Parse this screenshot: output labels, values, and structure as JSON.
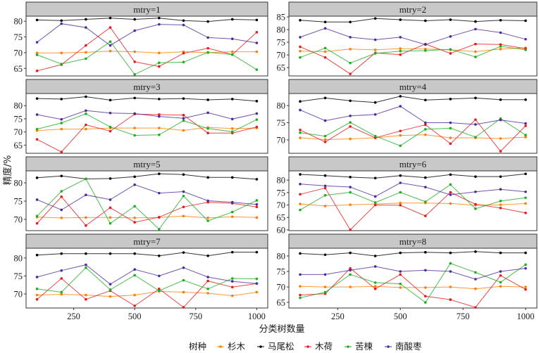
{
  "chart_data": {
    "type": "line",
    "title": "",
    "xlabel": "分类树数量",
    "ylabel": "精度/%",
    "x": [
      100,
      200,
      300,
      400,
      500,
      600,
      700,
      800,
      900,
      1000
    ],
    "x_ticks": [
      250,
      500,
      750,
      1000
    ],
    "xlim": [
      55,
      1045
    ],
    "legend": {
      "title": "树种",
      "placement": "bottom",
      "entries": [
        "杉木",
        "马尾松",
        "木荷",
        "苦楝",
        "南酸枣"
      ]
    },
    "series_colors": {
      "杉木": "#ff7f00",
      "马尾松": "#000000",
      "木荷": "#e41a1c",
      "苦楝": "#1fae1f",
      "南酸枣": "#4b2a9c"
    },
    "panels": [
      {
        "label": "mtry=1",
        "ylim": [
          62.6,
          81.6
        ],
        "y_ticks": [
          65,
          70,
          75,
          80
        ],
        "series": [
          {
            "name": "杉木",
            "values": [
              69.9,
              69.9,
              70.1,
              70.5,
              70.3,
              69.9,
              70.3,
              70.0,
              70.3,
              70.3
            ]
          },
          {
            "name": "马尾松",
            "values": [
              80.4,
              80.2,
              80.6,
              81.0,
              80.6,
              81.0,
              80.2,
              79.9,
              80.6,
              80.4
            ]
          },
          {
            "name": "木荷",
            "values": [
              64.2,
              66.2,
              72.3,
              78.0,
              67.1,
              65.6,
              69.8,
              71.4,
              69.4,
              76.5
            ]
          },
          {
            "name": "苦楝",
            "values": [
              69.3,
              66.4,
              68.1,
              73.5,
              63.1,
              66.8,
              67.0,
              70.1,
              69.4,
              64.6
            ]
          },
          {
            "name": "南酸枣",
            "values": [
              73.3,
              79.2,
              78.0,
              72.3,
              77.0,
              79.0,
              78.8,
              74.8,
              74.4,
              73.1
            ]
          }
        ]
      },
      {
        "label": "mtry=2",
        "ylim": [
          61.7,
          85.3
        ],
        "y_ticks": [
          65,
          70,
          75,
          80,
          85
        ],
        "series": [
          {
            "name": "杉木",
            "values": [
              71.5,
              71.3,
              72.3,
              72.0,
              72.5,
              72.3,
              72.0,
              71.3,
              72.3,
              72.8
            ]
          },
          {
            "name": "马尾松",
            "values": [
              83.7,
              83.0,
              83.0,
              84.4,
              83.9,
              83.5,
              83.9,
              83.2,
              83.7,
              83.5
            ]
          },
          {
            "name": "木荷",
            "values": [
              73.2,
              69.0,
              62.5,
              70.8,
              70.1,
              74.3,
              70.6,
              74.3,
              74.1,
              72.5
            ]
          },
          {
            "name": "苦楝",
            "values": [
              69.0,
              72.7,
              66.8,
              70.6,
              71.5,
              71.7,
              72.2,
              69.2,
              73.4,
              72.0
            ]
          },
          {
            "name": "南酸枣",
            "values": [
              77.0,
              80.5,
              77.0,
              76.0,
              77.0,
              74.1,
              77.3,
              80.2,
              78.8,
              76.2
            ]
          }
        ]
      },
      {
        "label": "mtry=3",
        "ylim": [
          61.9,
          84.6
        ],
        "y_ticks": [
          65,
          70,
          75,
          80
        ],
        "series": [
          {
            "name": "杉木",
            "values": [
              70.5,
              71.1,
              71.1,
              71.5,
              71.5,
              71.5,
              70.6,
              71.7,
              71.3,
              71.5
            ]
          },
          {
            "name": "马尾松",
            "values": [
              82.7,
              82.5,
              83.4,
              82.1,
              82.9,
              82.5,
              82.7,
              82.2,
              82.5,
              81.7
            ]
          },
          {
            "name": "木荷",
            "values": [
              67.2,
              62.4,
              72.7,
              70.3,
              76.8,
              76.6,
              76.4,
              69.6,
              69.6,
              71.9
            ]
          },
          {
            "name": "苦楝",
            "values": [
              71.1,
              73.4,
              76.9,
              71.9,
              68.7,
              68.9,
              74.3,
              71.3,
              70.1,
              74.7
            ]
          },
          {
            "name": "南酸枣",
            "values": [
              76.6,
              74.8,
              78.1,
              77.2,
              77.0,
              75.9,
              75.2,
              77.3,
              74.9,
              77.0
            ]
          }
        ]
      },
      {
        "label": "mtry=4",
        "ylim": [
          66.1,
          83.5
        ],
        "y_ticks": [
          70,
          75,
          80
        ],
        "series": [
          {
            "name": "杉木",
            "values": [
              70.6,
              70.1,
              70.3,
              70.6,
              71.3,
              71.5,
              70.6,
              70.6,
              70.4,
              70.8
            ]
          },
          {
            "name": "马尾松",
            "values": [
              81.2,
              82.2,
              81.4,
              80.9,
              82.7,
              81.6,
              81.9,
              82.2,
              81.7,
              81.7
            ]
          },
          {
            "name": "木荷",
            "values": [
              72.9,
              69.4,
              73.9,
              70.6,
              72.6,
              74.4,
              68.9,
              75.9,
              66.7,
              74.1
            ]
          },
          {
            "name": "苦楝",
            "values": [
              72.1,
              71.1,
              75.1,
              71.1,
              68.3,
              73.1,
              73.4,
              70.8,
              76.2,
              71.4
            ]
          },
          {
            "name": "南酸枣",
            "values": [
              78.7,
              75.6,
              77.0,
              77.4,
              79.8,
              75.0,
              75.0,
              74.5,
              75.8,
              74.8
            ]
          }
        ]
      },
      {
        "label": "mtry=5",
        "ylim": [
          66.9,
          83.3
        ],
        "y_ticks": [
          70,
          75,
          80
        ],
        "series": [
          {
            "name": "杉木",
            "values": [
              70.6,
              70.4,
              70.5,
              70.5,
              70.4,
              70.5,
              70.9,
              70.4,
              70.7,
              70.5
            ]
          },
          {
            "name": "马尾松",
            "values": [
              81.4,
              81.9,
              81.1,
              81.2,
              81.7,
              82.5,
              82.3,
              81.5,
              81.5,
              81.0
            ]
          },
          {
            "name": "木荷",
            "values": [
              68.9,
              76.2,
              68.3,
              73.2,
              69.2,
              70.6,
              73.4,
              74.7,
              74.4,
              73.4
            ]
          },
          {
            "name": "苦楝",
            "values": [
              70.9,
              77.7,
              81.1,
              68.9,
              73.6,
              67.3,
              76.4,
              69.6,
              72.0,
              75.2
            ]
          },
          {
            "name": "南酸枣",
            "values": [
              75.4,
              72.6,
              76.7,
              75.4,
              79.5,
              77.2,
              77.6,
              75.1,
              74.7,
              74.1
            ]
          }
        ]
      },
      {
        "label": "mtry=6",
        "ylim": [
          59.7,
          83.7
        ],
        "y_ticks": [
          60,
          65,
          70,
          75,
          80
        ],
        "series": [
          {
            "name": "杉木",
            "values": [
              70.4,
              69.6,
              70.1,
              70.4,
              70.8,
              70.8,
              70.6,
              69.9,
              70.1,
              70.6
            ]
          },
          {
            "name": "马尾松",
            "values": [
              82.3,
              81.8,
              81.2,
              80.8,
              81.8,
              81.0,
              82.2,
              81.4,
              81.4,
              82.5
            ]
          },
          {
            "name": "木荷",
            "values": [
              74.3,
              76.8,
              60.0,
              70.0,
              69.9,
              65.6,
              75.1,
              70.3,
              68.8,
              66.8
            ]
          },
          {
            "name": "苦楝",
            "values": [
              68.0,
              73.9,
              75.1,
              71.0,
              75.1,
              71.3,
              78.2,
              68.5,
              71.6,
              72.9
            ]
          },
          {
            "name": "南酸枣",
            "values": [
              78.4,
              77.7,
              77.2,
              73.4,
              78.9,
              77.2,
              74.1,
              75.3,
              76.3,
              75.3
            ]
          }
        ]
      },
      {
        "label": "mtry=7",
        "ylim": [
          66.1,
          82.7
        ],
        "y_ticks": [
          70,
          75,
          80
        ],
        "series": [
          {
            "name": "杉木",
            "values": [
              69.7,
              69.9,
              69.7,
              69.3,
              69.7,
              70.7,
              70.5,
              70.2,
              69.5,
              70.5
            ]
          },
          {
            "name": "马尾松",
            "values": [
              80.8,
              81.2,
              81.2,
              81.2,
              81.2,
              80.6,
              81.5,
              80.6,
              81.6,
              81.6
            ]
          },
          {
            "name": "木荷",
            "values": [
              68.5,
              74.3,
              68.5,
              70.9,
              66.7,
              71.4,
              66.3,
              73.6,
              71.9,
              72.9
            ]
          },
          {
            "name": "苦楝",
            "values": [
              71.4,
              70.5,
              77.3,
              71.2,
              75.2,
              70.9,
              73.8,
              71.4,
              74.3,
              74.2
            ]
          },
          {
            "name": "南酸枣",
            "values": [
              74.7,
              76.5,
              78.1,
              72.7,
              76.8,
              75.0,
              77.3,
              74.7,
              73.5,
              72.9
            ]
          }
        ]
      },
      {
        "label": "mtry=8",
        "ylim": [
          63.2,
          82.5
        ],
        "y_ticks": [
          65,
          70,
          75,
          80
        ],
        "series": [
          {
            "name": "杉木",
            "values": [
              70.2,
              70.0,
              70.0,
              70.2,
              69.8,
              69.8,
              70.0,
              69.4,
              70.2,
              70.0
            ]
          },
          {
            "name": "马尾松",
            "values": [
              80.8,
              80.4,
              81.0,
              80.0,
              81.0,
              81.2,
              81.0,
              81.4,
              81.0,
              81.0
            ]
          },
          {
            "name": "木荷",
            "values": [
              67.4,
              67.8,
              76.0,
              69.4,
              74.0,
              67.0,
              65.9,
              63.4,
              73.7,
              69.2
            ]
          },
          {
            "name": "苦楝",
            "values": [
              66.5,
              68.3,
              74.0,
              71.4,
              71.0,
              65.0,
              77.6,
              74.7,
              71.5,
              77.2
            ]
          },
          {
            "name": "南酸枣",
            "values": [
              74.0,
              74.0,
              75.4,
              76.6,
              75.0,
              75.4,
              75.0,
              72.5,
              75.0,
              76.0
            ]
          }
        ]
      }
    ]
  }
}
